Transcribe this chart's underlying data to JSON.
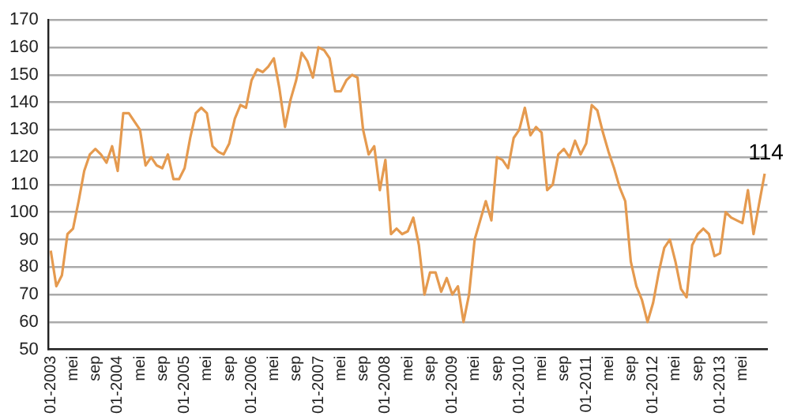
{
  "chart_data": {
    "type": "line",
    "categories": [
      "01-2003",
      null,
      null,
      null,
      "mei",
      null,
      null,
      null,
      "sep",
      null,
      null,
      null,
      "01-2004",
      null,
      null,
      null,
      "mei",
      null,
      null,
      null,
      "sep",
      null,
      null,
      null,
      "01-2005",
      null,
      null,
      null,
      "mei",
      null,
      null,
      null,
      "sep",
      null,
      null,
      null,
      "01-2006",
      null,
      null,
      null,
      "mei",
      null,
      null,
      null,
      "sep",
      null,
      null,
      null,
      "01-2007",
      null,
      null,
      null,
      "mei",
      null,
      null,
      null,
      "sep",
      null,
      null,
      null,
      "01-2008",
      null,
      null,
      null,
      "mei",
      null,
      null,
      null,
      "sep",
      null,
      null,
      null,
      "01-2009",
      null,
      null,
      null,
      "mei",
      null,
      null,
      null,
      "sep",
      null,
      null,
      null,
      "01-2010",
      null,
      null,
      null,
      "mei",
      null,
      null,
      null,
      "sep",
      null,
      null,
      null,
      "01-2011",
      null,
      null,
      null,
      "mei",
      null,
      null,
      null,
      "sep",
      null,
      null,
      null,
      "01-2012",
      null,
      null,
      null,
      "mei",
      null,
      null,
      null,
      "sep",
      null,
      null,
      null,
      "01-2013",
      null,
      null,
      null,
      "mei",
      null,
      null,
      null,
      null
    ],
    "series": [
      {
        "color": "#e59a4f",
        "values": [
          86,
          73,
          77,
          92,
          94,
          104,
          115,
          121,
          123,
          121,
          118,
          124,
          115,
          136,
          136,
          133,
          130,
          117,
          120,
          117,
          116,
          121,
          112,
          112,
          116,
          127,
          136,
          138,
          136,
          124,
          122,
          121,
          125,
          134,
          139,
          138,
          148,
          152,
          151,
          153,
          156,
          145,
          131,
          141,
          148,
          158,
          155,
          149,
          160,
          159,
          156,
          144,
          144,
          148,
          150,
          149,
          130,
          121,
          124,
          108,
          119,
          92,
          94,
          92,
          93,
          98,
          88,
          70,
          78,
          78,
          71,
          76,
          70,
          73,
          60,
          70,
          90,
          97,
          104,
          97,
          120,
          119,
          116,
          127,
          130,
          138,
          128,
          131,
          129,
          108,
          110,
          121,
          123,
          120,
          126,
          121,
          125,
          139,
          137,
          129,
          122,
          116,
          109,
          104,
          82,
          73,
          68,
          60,
          67,
          78,
          87,
          90,
          82,
          72,
          69,
          88,
          92,
          94,
          92,
          84,
          85,
          100,
          98,
          97,
          96,
          108,
          92,
          103,
          114
        ],
        "value_labels": [
          null,
          null,
          null,
          null,
          null,
          null,
          null,
          null,
          null,
          null,
          null,
          null,
          null,
          null,
          null,
          null,
          null,
          null,
          null,
          null,
          null,
          null,
          null,
          null,
          null,
          null,
          null,
          null,
          null,
          null,
          null,
          null,
          null,
          null,
          null,
          null,
          null,
          null,
          null,
          null,
          null,
          null,
          null,
          null,
          null,
          null,
          null,
          null,
          null,
          null,
          null,
          null,
          null,
          null,
          null,
          null,
          null,
          null,
          null,
          null,
          null,
          null,
          null,
          null,
          null,
          null,
          null,
          null,
          null,
          null,
          null,
          null,
          null,
          null,
          null,
          null,
          null,
          null,
          null,
          null,
          null,
          null,
          null,
          null,
          null,
          null,
          null,
          null,
          null,
          null,
          null,
          null,
          null,
          null,
          null,
          null,
          null,
          null,
          null,
          null,
          null,
          null,
          null,
          null,
          null,
          null,
          null,
          null,
          null,
          null,
          null,
          null,
          null,
          null,
          null,
          null,
          null,
          null,
          null,
          null,
          null,
          null,
          null,
          null,
          null,
          null,
          null,
          null,
          "114"
        ]
      }
    ],
    "ylim": [
      50,
      170
    ],
    "yticks": [
      50,
      60,
      70,
      80,
      90,
      100,
      110,
      120,
      130,
      140,
      150,
      160,
      170
    ],
    "grid": "y",
    "legend": false,
    "marker": "none",
    "line_style": "solid"
  }
}
